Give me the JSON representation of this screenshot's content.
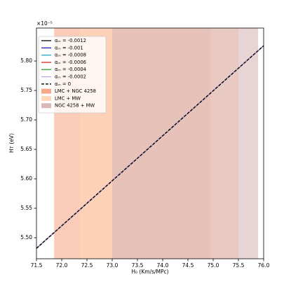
{
  "chart_data": {
    "type": "line",
    "x_label": "H₀ (Km/s/MPc)",
    "y_label": "Hᴛ (eV)",
    "y_offset_label": "×10⁻⁵",
    "x": [
      71.5,
      76.0
    ],
    "series": [
      {
        "name": "αₘ = -0.0012",
        "color": "#000000",
        "values": [
          5.482,
          5.826
        ]
      },
      {
        "name": "αₘ = -0.001",
        "color": "#1f1fd0",
        "values": [
          5.482,
          5.826
        ]
      },
      {
        "name": "αₘ = -0.0008",
        "color": "#1fa8d8",
        "values": [
          5.482,
          5.826
        ]
      },
      {
        "name": "αₘ = -0.0006",
        "color": "#d62728",
        "values": [
          5.482,
          5.826
        ]
      },
      {
        "name": "αₘ = -0.0004",
        "color": "#2ca02c",
        "values": [
          5.482,
          5.826
        ]
      },
      {
        "name": "αₘ = -0.0002",
        "color": "#c9a0e8",
        "values": [
          5.482,
          5.826
        ]
      },
      {
        "name": "αₘ = 0",
        "color": "#000000",
        "dashed": true,
        "values": [
          5.482,
          5.826
        ]
      }
    ],
    "bands": [
      {
        "name": "LMC + NGC 4258",
        "color": "#f7a88a",
        "range": [
          71.85,
          74.95
        ]
      },
      {
        "name": "LMC + MW",
        "color": "#ffd6b8",
        "range": [
          72.35,
          75.5
        ]
      },
      {
        "name": "NGC 4258 + MW",
        "color": "#d9b8b8",
        "range": [
          73.0,
          75.89
        ]
      }
    ],
    "xlim": [
      71.5,
      76.0
    ],
    "xticks": [
      71.5,
      {
        "value": 72.0,
        "label": "72.0"
      },
      72.5,
      {
        "value": 73.0,
        "label": "73.0"
      },
      73.5,
      {
        "value": 74.0,
        "label": "74.0"
      },
      74.5,
      {
        "value": 75.0,
        "label": "75.0"
      },
      75.5,
      {
        "value": 76.0,
        "label": "76.0"
      }
    ],
    "ylim": [
      5.4643,
      5.856
    ],
    "yticks": [
      {
        "value": 5.5,
        "label": "5.50"
      },
      5.55,
      {
        "value": 5.6,
        "label": "5.60"
      },
      5.65,
      {
        "value": 5.7,
        "label": "5.70"
      },
      5.75,
      {
        "value": 5.8,
        "label": "5.80"
      }
    ],
    "legend": "upper left"
  }
}
